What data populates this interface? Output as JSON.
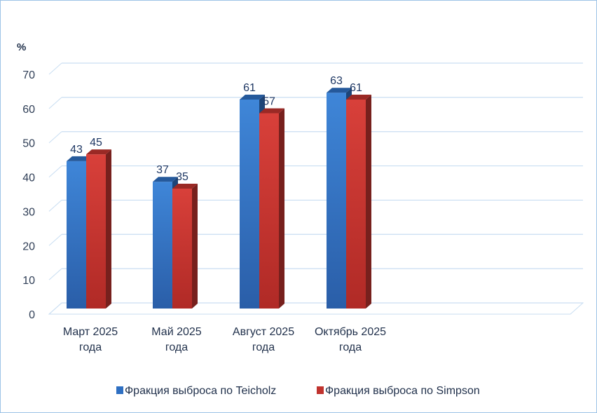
{
  "chart_data": {
    "type": "bar",
    "title": "",
    "ylabel": "%",
    "xlabel": "",
    "ylim": [
      0,
      70
    ],
    "yticks": [
      0,
      10,
      20,
      30,
      40,
      50,
      60,
      70
    ],
    "categories": [
      [
        "Март 2025",
        "года"
      ],
      [
        "Май 2025",
        "года"
      ],
      [
        "Август 2025",
        "года"
      ],
      [
        "Октябрь 2025",
        "года"
      ]
    ],
    "series": [
      {
        "name": "Фракция выброса по Teicholz",
        "values": [
          43,
          37,
          61,
          63
        ],
        "color": "#2e6fc2"
      },
      {
        "name": "Фракция выброса по Simpson",
        "values": [
          45,
          35,
          57,
          61
        ],
        "color": "#c0332e"
      }
    ],
    "grid": true,
    "legend_position": "bottom"
  }
}
